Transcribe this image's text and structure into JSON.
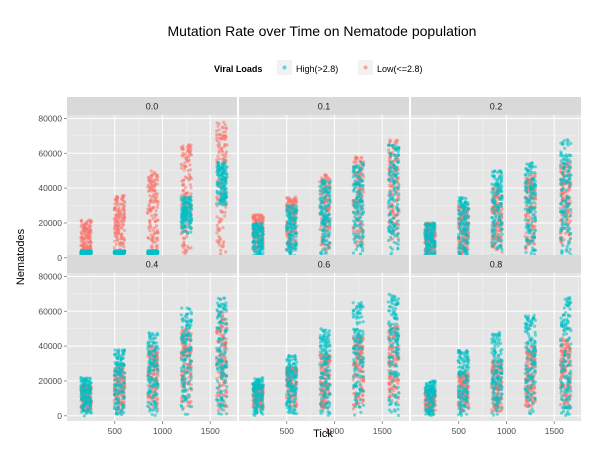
{
  "chart_data": {
    "type": "scatter",
    "title": "Mutation Rate over Time on Nematode population",
    "xlabel": "Tick",
    "ylabel": "Nematodes",
    "legend": {
      "title": "Viral Loads",
      "position": "top",
      "entries": [
        {
          "label": "High(>2.8)",
          "color": "#00BFC4"
        },
        {
          "label": "Low(<=2.8)",
          "color": "#F8766D"
        }
      ]
    },
    "xlim": [
      0,
      1780
    ],
    "ylim": [
      -3000,
      82000
    ],
    "x_ticks": [
      500,
      1000,
      1500
    ],
    "x_tick_labels": [
      "500",
      "1000",
      "1500"
    ],
    "y_ticks": [
      0,
      20000,
      40000,
      60000,
      80000
    ],
    "y_tick_labels": [
      "0",
      "20000",
      "40000",
      "60000",
      "80000"
    ],
    "grid": true,
    "facet_rows": 2,
    "facet_cols": 3,
    "tick_clusters": [
      200,
      550,
      900,
      1250,
      1620
    ],
    "facets": [
      {
        "label": "0.0",
        "high": [
          {
            "x": 200,
            "ymin": 2000,
            "ymax": 4000
          },
          {
            "x": 550,
            "ymin": 2000,
            "ymax": 4000
          },
          {
            "x": 900,
            "ymin": 2000,
            "ymax": 4000
          },
          {
            "x": 1250,
            "ymin": 14000,
            "ymax": 35000
          },
          {
            "x": 1620,
            "ymin": 30000,
            "ymax": 55000
          }
        ],
        "low": [
          {
            "x": 200,
            "ymin": 0,
            "ymax": 22000
          },
          {
            "x": 550,
            "ymin": 0,
            "ymax": 36000
          },
          {
            "x": 900,
            "ymin": 0,
            "ymax": 50000
          },
          {
            "x": 1250,
            "ymin": 0,
            "ymax": 65000
          },
          {
            "x": 1620,
            "ymin": 0,
            "ymax": 78000
          }
        ]
      },
      {
        "label": "0.1",
        "high": [
          {
            "x": 200,
            "ymin": 0,
            "ymax": 20000
          },
          {
            "x": 550,
            "ymin": 0,
            "ymax": 30000
          },
          {
            "x": 900,
            "ymin": 0,
            "ymax": 45000
          },
          {
            "x": 1250,
            "ymin": 0,
            "ymax": 55000
          },
          {
            "x": 1620,
            "ymin": 0,
            "ymax": 65000
          }
        ],
        "low": [
          {
            "x": 200,
            "ymin": 4000,
            "ymax": 25000
          },
          {
            "x": 550,
            "ymin": 4000,
            "ymax": 35000
          },
          {
            "x": 900,
            "ymin": 4000,
            "ymax": 48000
          },
          {
            "x": 1250,
            "ymin": 6000,
            "ymax": 58000
          },
          {
            "x": 1620,
            "ymin": 10000,
            "ymax": 68000
          }
        ]
      },
      {
        "label": "0.2",
        "high": [
          {
            "x": 200,
            "ymin": 0,
            "ymax": 20000
          },
          {
            "x": 550,
            "ymin": 0,
            "ymax": 35000
          },
          {
            "x": 900,
            "ymin": 0,
            "ymax": 50000
          },
          {
            "x": 1250,
            "ymin": 0,
            "ymax": 55000
          },
          {
            "x": 1620,
            "ymin": 0,
            "ymax": 68000
          }
        ],
        "low": [
          {
            "x": 200,
            "ymin": 2000,
            "ymax": 20000
          },
          {
            "x": 550,
            "ymin": 2000,
            "ymax": 30000
          },
          {
            "x": 900,
            "ymin": 2000,
            "ymax": 40000
          },
          {
            "x": 1250,
            "ymin": 4000,
            "ymax": 48000
          },
          {
            "x": 1620,
            "ymin": 8000,
            "ymax": 55000
          }
        ]
      },
      {
        "label": "0.4",
        "high": [
          {
            "x": 200,
            "ymin": 0,
            "ymax": 22000
          },
          {
            "x": 550,
            "ymin": 0,
            "ymax": 38000
          },
          {
            "x": 900,
            "ymin": 0,
            "ymax": 48000
          },
          {
            "x": 1250,
            "ymin": 0,
            "ymax": 62000
          },
          {
            "x": 1620,
            "ymin": 0,
            "ymax": 68000
          }
        ],
        "low": [
          {
            "x": 200,
            "ymin": 2000,
            "ymax": 18000
          },
          {
            "x": 550,
            "ymin": 2000,
            "ymax": 30000
          },
          {
            "x": 900,
            "ymin": 2000,
            "ymax": 40000
          },
          {
            "x": 1250,
            "ymin": 2000,
            "ymax": 50000
          },
          {
            "x": 1620,
            "ymin": 2000,
            "ymax": 60000
          }
        ]
      },
      {
        "label": "0.6",
        "high": [
          {
            "x": 200,
            "ymin": 0,
            "ymax": 22000
          },
          {
            "x": 550,
            "ymin": 0,
            "ymax": 35000
          },
          {
            "x": 900,
            "ymin": 0,
            "ymax": 50000
          },
          {
            "x": 1250,
            "ymin": 0,
            "ymax": 65000
          },
          {
            "x": 1620,
            "ymin": 0,
            "ymax": 70000
          }
        ],
        "low": [
          {
            "x": 200,
            "ymin": 4000,
            "ymax": 18000
          },
          {
            "x": 550,
            "ymin": 4000,
            "ymax": 28000
          },
          {
            "x": 900,
            "ymin": 4000,
            "ymax": 35000
          },
          {
            "x": 1250,
            "ymin": 4000,
            "ymax": 45000
          },
          {
            "x": 1620,
            "ymin": 4000,
            "ymax": 52000
          }
        ]
      },
      {
        "label": "0.8",
        "high": [
          {
            "x": 200,
            "ymin": 0,
            "ymax": 20000
          },
          {
            "x": 550,
            "ymin": 0,
            "ymax": 38000
          },
          {
            "x": 900,
            "ymin": 0,
            "ymax": 48000
          },
          {
            "x": 1250,
            "ymin": 0,
            "ymax": 58000
          },
          {
            "x": 1620,
            "ymin": 0,
            "ymax": 68000
          }
        ],
        "low": [
          {
            "x": 200,
            "ymin": 2000,
            "ymax": 15000
          },
          {
            "x": 550,
            "ymin": 2000,
            "ymax": 25000
          },
          {
            "x": 900,
            "ymin": 2000,
            "ymax": 32000
          },
          {
            "x": 1250,
            "ymin": 2000,
            "ymax": 40000
          },
          {
            "x": 1620,
            "ymin": 4000,
            "ymax": 45000
          }
        ]
      }
    ]
  }
}
